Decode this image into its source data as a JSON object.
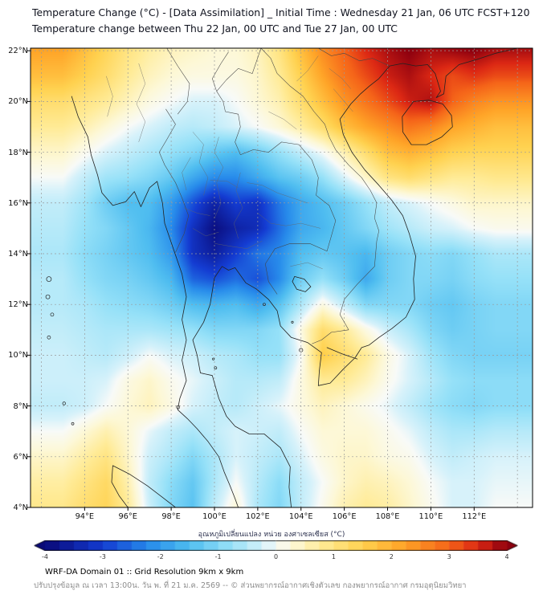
{
  "footer": {
    "domain_info": "WRF-DA Domain 01 :: Grid Resolution 9km x 9km",
    "update_info": "ปรับปรุงข้อมูล ณ เวลา 13:00น. วัน พ. ที่ 21 ม.ค. 2569 -- © ส่วนพยากรณ์อากาศเชิงตัวเลข กองพยากรณ์อากาศ กรมอุตุนิยมวิทยา"
  },
  "chart_data": {
    "type": "heatmap",
    "title": "Temperature Change (°C) - [Data Assimilation] _ Initial Time : Wednesday 21 Jan, 06 UTC FCST+120",
    "subtitle": "Temperature change between Thu 22 Jan, 00 UTC and Tue 27 Jan, 00 UTC",
    "xlabel": "",
    "ylabel": "",
    "lon_range": [
      91.5,
      114.7
    ],
    "lat_range": [
      4,
      22.1
    ],
    "grid_lines": {
      "lon_step": 2,
      "lat_step": 2,
      "style": "dashed-gray"
    },
    "x_axis": {
      "tick_lons": [
        94,
        96,
        98,
        100,
        102,
        104,
        106,
        108,
        110,
        112
      ],
      "tick_labels": [
        "94°E",
        "96°E",
        "98°E",
        "100°E",
        "102°E",
        "104°E",
        "106°E",
        "108°E",
        "110°E",
        "112°E"
      ]
    },
    "y_axis": {
      "tick_lats": [
        4,
        6,
        8,
        10,
        12,
        14,
        16,
        18,
        20,
        22
      ],
      "tick_labels": [
        "4°N",
        "6°N",
        "8°N",
        "10°N",
        "12°N",
        "14°N",
        "16°N",
        "18°N",
        "20°N",
        "22°N"
      ]
    },
    "colorbar": {
      "label": "อุณหภูมิเปลี่ยนแปลง หน่วย องศาเซลเซียส (°C)",
      "min": -4,
      "max": 4,
      "segment_step": 0.25,
      "tick_values": [
        -4,
        -3,
        -2,
        -1,
        0,
        1,
        2,
        3,
        4
      ],
      "tick_labels": [
        "-4",
        "-3",
        "-2",
        "-1",
        "0",
        "1",
        "2",
        "3",
        "4"
      ],
      "colors": [
        [
          -4.0,
          "#0a0a78"
        ],
        [
          -3.0,
          "#143cd2"
        ],
        [
          -2.2,
          "#288ceb"
        ],
        [
          -1.5,
          "#50bef0"
        ],
        [
          -0.8,
          "#96e1f8"
        ],
        [
          -0.2,
          "#d7f2fa"
        ],
        [
          0.0,
          "#f8faf8"
        ],
        [
          0.3,
          "#fdf8d7"
        ],
        [
          0.8,
          "#ffeb96"
        ],
        [
          1.5,
          "#ffd250"
        ],
        [
          2.2,
          "#ffa528"
        ],
        [
          3.0,
          "#f56419"
        ],
        [
          3.5,
          "#dc2814"
        ],
        [
          4.0,
          "#8c000f"
        ]
      ]
    },
    "grid": {
      "units": "°C",
      "lons": [
        93,
        94,
        95,
        96,
        97,
        98,
        99,
        100,
        101,
        102,
        103,
        104,
        105,
        106,
        107,
        108,
        109,
        110,
        111,
        112,
        113
      ],
      "lats": [
        22,
        21,
        20,
        19,
        18,
        17,
        16,
        15,
        14,
        13,
        12,
        11,
        10,
        9,
        8,
        7,
        6,
        5,
        4
      ],
      "values_degC": [
        [
          2.2,
          1.8,
          1.4,
          1.0,
          0.7,
          0.5,
          0.4,
          0.3,
          0.3,
          0.5,
          1.0,
          1.8,
          2.5,
          3.0,
          3.5,
          3.8,
          4.0,
          3.8,
          3.9,
          4.0,
          3.8
        ],
        [
          1.8,
          1.5,
          1.2,
          0.8,
          0.5,
          0.3,
          0.2,
          0.2,
          0.2,
          0.4,
          0.8,
          1.5,
          2.2,
          2.8,
          3.2,
          3.6,
          3.8,
          3.5,
          3.2,
          3.4,
          3.2
        ],
        [
          1.2,
          1.0,
          0.8,
          0.5,
          0.2,
          0.0,
          -0.2,
          -0.2,
          0.0,
          0.3,
          0.6,
          1.2,
          1.8,
          2.4,
          2.8,
          3.2,
          3.6,
          3.8,
          3.0,
          2.6,
          2.4
        ],
        [
          0.8,
          0.6,
          0.3,
          0.0,
          -0.2,
          -0.4,
          -0.5,
          -0.4,
          -0.2,
          0.0,
          0.3,
          0.7,
          1.2,
          1.8,
          2.2,
          2.5,
          2.8,
          2.6,
          2.2,
          2.0,
          1.8
        ],
        [
          0.4,
          0.1,
          -0.2,
          -0.4,
          -0.6,
          -0.8,
          -1.0,
          -1.3,
          -1.5,
          -1.2,
          -0.8,
          -0.4,
          0.0,
          0.6,
          1.2,
          1.8,
          2.0,
          1.8,
          1.5,
          1.4,
          1.4
        ],
        [
          0.0,
          -0.4,
          -0.7,
          -0.8,
          -1.0,
          -1.3,
          -1.8,
          -2.2,
          -2.2,
          -1.8,
          -1.4,
          -1.2,
          -0.8,
          -0.2,
          0.4,
          1.0,
          1.2,
          1.0,
          0.8,
          0.8,
          0.9
        ],
        [
          -0.4,
          -0.7,
          -1.2,
          -1.5,
          -1.5,
          -2.0,
          -2.8,
          -3.5,
          -3.0,
          -3.2,
          -2.4,
          -1.8,
          -1.5,
          -1.2,
          -0.8,
          -0.4,
          -0.2,
          0.0,
          0.2,
          0.4,
          0.4
        ],
        [
          -0.5,
          -0.8,
          -1.0,
          -1.3,
          -1.6,
          -2.2,
          -3.2,
          -3.9,
          -3.5,
          -3.3,
          -2.5,
          -1.8,
          -1.6,
          -1.3,
          -1.0,
          -0.7,
          -0.5,
          -0.3,
          -0.2,
          0.0,
          0.1
        ],
        [
          -0.6,
          -0.9,
          -1.1,
          -1.3,
          -1.5,
          -2.0,
          -3.2,
          -3.6,
          -3.0,
          -2.4,
          -2.2,
          -1.5,
          -1.3,
          -1.4,
          -1.6,
          -1.2,
          -1.0,
          -0.9,
          -1.0,
          -0.8,
          -0.6
        ],
        [
          -0.5,
          -0.8,
          -1.0,
          -1.1,
          -1.3,
          -1.6,
          -2.6,
          -2.8,
          -2.5,
          -2.8,
          -2.2,
          -1.2,
          -0.8,
          -1.2,
          -1.8,
          -1.2,
          -1.0,
          -1.0,
          -1.1,
          -0.9,
          -0.8
        ],
        [
          -0.5,
          -0.6,
          -0.8,
          -0.9,
          -1.0,
          -1.2,
          -1.5,
          -1.6,
          -1.5,
          -1.8,
          -1.4,
          -0.6,
          0.2,
          -0.4,
          -1.0,
          -1.0,
          -1.0,
          -1.2,
          -1.3,
          -1.1,
          -1.0
        ],
        [
          -0.4,
          -0.5,
          -0.6,
          -0.6,
          -0.6,
          -0.7,
          -0.8,
          -1.0,
          -1.0,
          -1.0,
          -0.8,
          0.2,
          1.2,
          0.8,
          0.2,
          -0.3,
          -0.6,
          -1.0,
          -1.2,
          -1.1,
          -1.0
        ],
        [
          -0.3,
          -0.4,
          -0.5,
          -0.3,
          0.0,
          -0.2,
          -0.3,
          -0.5,
          -0.6,
          -0.8,
          -0.8,
          0.0,
          1.6,
          1.2,
          0.8,
          0.2,
          -0.2,
          -0.7,
          -1.0,
          -1.1,
          -1.1
        ],
        [
          -0.3,
          -0.3,
          -0.2,
          0.2,
          0.4,
          0.1,
          -0.1,
          -0.3,
          -0.5,
          -0.5,
          -0.4,
          0.2,
          0.8,
          0.8,
          0.5,
          0.1,
          -0.2,
          -0.5,
          -0.8,
          -0.9,
          -0.9
        ],
        [
          -0.4,
          -0.3,
          0.0,
          0.3,
          0.5,
          0.2,
          -0.2,
          -0.4,
          -0.5,
          -0.3,
          -0.1,
          0.2,
          0.5,
          0.3,
          0.1,
          -0.1,
          -0.4,
          -0.7,
          -0.9,
          -1.0,
          -0.9
        ],
        [
          0.0,
          0.3,
          0.6,
          0.3,
          -0.1,
          -0.4,
          -0.6,
          -0.4,
          -0.2,
          -0.3,
          -0.4,
          0.0,
          0.3,
          0.3,
          0.3,
          0.1,
          -0.1,
          -0.4,
          -0.6,
          -0.6,
          -0.5
        ],
        [
          0.4,
          0.7,
          1.0,
          0.4,
          -0.3,
          -0.6,
          -1.0,
          -0.6,
          -0.2,
          -0.4,
          -0.6,
          -0.2,
          0.2,
          0.4,
          0.4,
          0.2,
          0.1,
          -0.2,
          -0.4,
          -0.3,
          -0.2
        ],
        [
          0.7,
          1.0,
          1.3,
          0.6,
          -0.4,
          -0.9,
          -1.3,
          -0.6,
          0.0,
          -0.5,
          -0.9,
          -0.4,
          0.0,
          0.4,
          0.6,
          0.5,
          0.3,
          0.0,
          -0.2,
          -0.2,
          -0.1
        ],
        [
          0.9,
          1.2,
          1.4,
          0.8,
          -0.3,
          -1.0,
          -1.4,
          -0.4,
          0.3,
          -0.6,
          -1.0,
          -0.4,
          0.1,
          0.6,
          0.8,
          0.7,
          0.4,
          0.1,
          -0.2,
          -0.2,
          0.0
        ]
      ]
    }
  }
}
